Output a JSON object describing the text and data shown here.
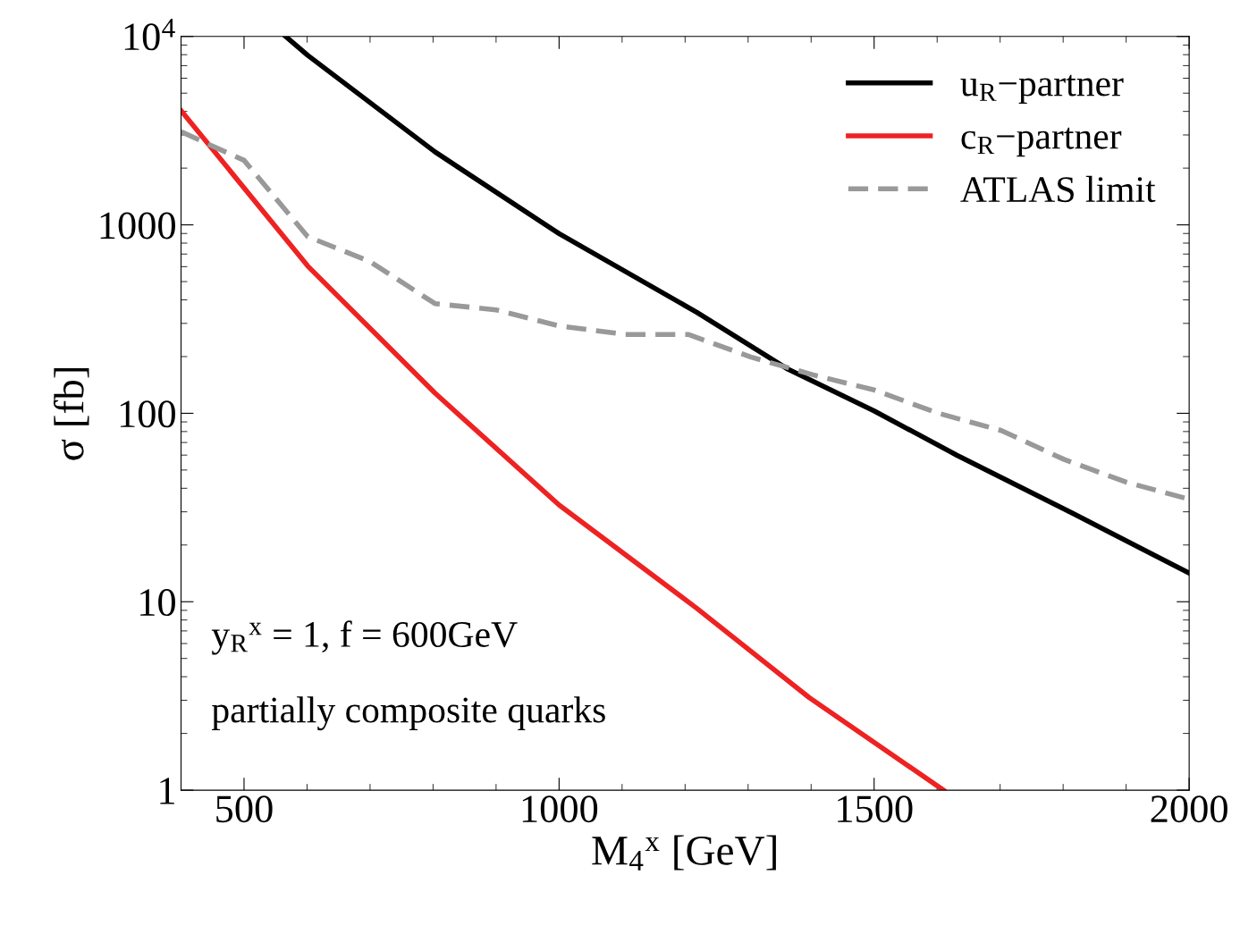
{
  "chart_data": {
    "type": "line",
    "xlabel": "M$_{4}$$^{x}$ [GeV]",
    "ylabel": "σ [fb]",
    "log": "y",
    "xlim": [
      400,
      2000
    ],
    "xticks": [
      500,
      1000,
      1500,
      2000
    ],
    "ylim": [
      1,
      10000
    ],
    "yticks": [
      1,
      10,
      100,
      1000,
      {
        "value": 10000,
        "label": "10$^{4}$"
      }
    ],
    "grid": false,
    "legend": "top right",
    "annotations": [
      "y$_{R}$$^{x}$ = 1, f = 600GeV",
      "partially composite quarks"
    ],
    "series": [
      {
        "name": "u$_{R}$−partner",
        "color": "#000000",
        "line_style": "solid",
        "x": [
          566,
          601,
          803,
          1000,
          1219,
          1361,
          1500,
          1631,
          1815,
          2000
        ],
        "values": [
          10000,
          7940,
          2440,
          898,
          343,
          173,
          103,
          60,
          29.5,
          14.2
        ]
      },
      {
        "name": "c$_{R}$−partner",
        "color": "#ee2222",
        "line_style": "solid",
        "x": [
          400,
          601,
          803,
          1000,
          1219,
          1397,
          1610
        ],
        "values": [
          4036,
          605,
          128,
          32.6,
          9.2,
          3.1,
          1
        ]
      },
      {
        "name": "ATLAS limit",
        "color": "#999999",
        "line_style": "dashed",
        "x": [
          400,
          500,
          601,
          700,
          803,
          900,
          1000,
          1105,
          1205,
          1304,
          1403,
          1500,
          1602,
          1702,
          1801,
          1901,
          2000
        ],
        "values": [
          3120,
          2200,
          866,
          638,
          382,
          354,
          291,
          262,
          262,
          199,
          160,
          133,
          100,
          81,
          57,
          43,
          35
        ]
      }
    ]
  }
}
